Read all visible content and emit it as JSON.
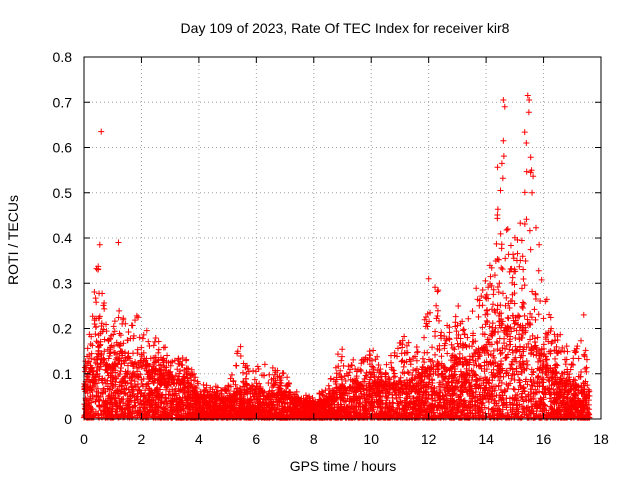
{
  "chart_data": {
    "type": "scatter",
    "title": "Day 109 of 2023, Rate Of TEC Index for receiver kir8",
    "xlabel": "GPS time / hours",
    "ylabel": "ROTI / TECUs",
    "xlim": [
      0,
      18
    ],
    "ylim": [
      0,
      0.8
    ],
    "xticks": [
      "0",
      "2",
      "4",
      "6",
      "8",
      "10",
      "12",
      "14",
      "16",
      "18"
    ],
    "yticks": [
      "0",
      "0.1",
      "0.2",
      "0.3",
      "0.4",
      "0.5",
      "0.6",
      "0.7",
      "0.8"
    ],
    "grid": true,
    "marker": "+",
    "color": "#ff0000",
    "x_data_range": [
      0,
      17.6
    ],
    "envelope": {
      "x": [
        0,
        0.3,
        0.5,
        0.6,
        0.8,
        1.0,
        1.2,
        1.5,
        2.0,
        2.5,
        3.0,
        3.5,
        4.0,
        5.0,
        5.4,
        5.8,
        6.2,
        7.0,
        7.5,
        8.0,
        8.5,
        9.0,
        9.5,
        10.0,
        10.5,
        11.0,
        11.5,
        12.0,
        12.3,
        12.7,
        13.0,
        13.5,
        14.0,
        14.3,
        14.5,
        14.7,
        15.0,
        15.3,
        15.5,
        15.7,
        16.0,
        16.5,
        17.0,
        17.3,
        17.6
      ],
      "upper": [
        0.14,
        0.24,
        0.38,
        0.3,
        0.22,
        0.2,
        0.26,
        0.2,
        0.25,
        0.18,
        0.15,
        0.14,
        0.08,
        0.07,
        0.17,
        0.1,
        0.14,
        0.1,
        0.06,
        0.05,
        0.07,
        0.18,
        0.12,
        0.16,
        0.12,
        0.2,
        0.15,
        0.25,
        0.31,
        0.2,
        0.25,
        0.3,
        0.32,
        0.45,
        0.7,
        0.5,
        0.4,
        0.7,
        0.71,
        0.5,
        0.3,
        0.2,
        0.15,
        0.22,
        0.12
      ],
      "dense_top": [
        0.07,
        0.12,
        0.16,
        0.14,
        0.12,
        0.11,
        0.13,
        0.12,
        0.13,
        0.1,
        0.09,
        0.08,
        0.05,
        0.04,
        0.06,
        0.06,
        0.06,
        0.05,
        0.04,
        0.03,
        0.04,
        0.07,
        0.07,
        0.08,
        0.07,
        0.08,
        0.08,
        0.11,
        0.12,
        0.11,
        0.12,
        0.14,
        0.16,
        0.2,
        0.22,
        0.2,
        0.2,
        0.22,
        0.22,
        0.16,
        0.13,
        0.09,
        0.07,
        0.07,
        0.06
      ]
    },
    "notable_points": [
      {
        "x": 0.6,
        "y": 0.635
      },
      {
        "x": 0.55,
        "y": 0.385
      },
      {
        "x": 1.2,
        "y": 0.39
      },
      {
        "x": 14.6,
        "y": 0.705
      },
      {
        "x": 14.65,
        "y": 0.69
      },
      {
        "x": 15.45,
        "y": 0.715
      },
      {
        "x": 15.5,
        "y": 0.705
      },
      {
        "x": 14.6,
        "y": 0.615
      },
      {
        "x": 15.4,
        "y": 0.61
      },
      {
        "x": 14.55,
        "y": 0.565
      },
      {
        "x": 15.55,
        "y": 0.545
      },
      {
        "x": 14.5,
        "y": 0.505
      },
      {
        "x": 15.6,
        "y": 0.5
      },
      {
        "x": 12.0,
        "y": 0.31
      },
      {
        "x": 17.4,
        "y": 0.23
      }
    ]
  }
}
